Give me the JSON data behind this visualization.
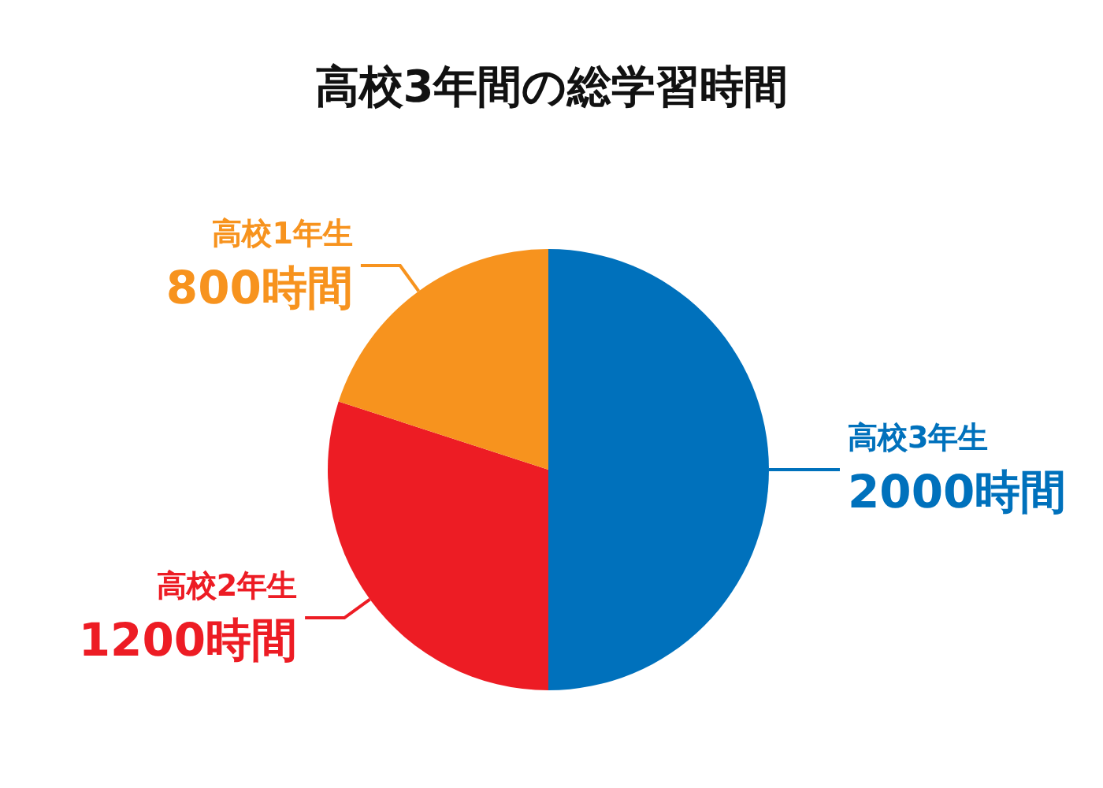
{
  "chart_data": {
    "type": "pie",
    "title": "高校3年間の総学習時間",
    "categories": [
      "高校3年生",
      "高校2年生",
      "高校1年生"
    ],
    "values": [
      2000,
      1200,
      800
    ],
    "value_labels": [
      "2000時間",
      "1200時間",
      "800時間"
    ],
    "colors": [
      "#0071bc",
      "#ed1c24",
      "#f7931e"
    ],
    "legend": false
  }
}
